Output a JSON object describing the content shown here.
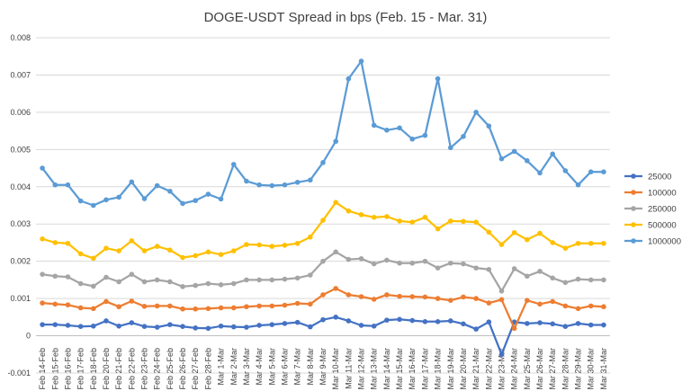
{
  "chart_data": {
    "type": "line",
    "title": "DOGE-USDT Spread in bps (Feb. 15 - Mar. 31)",
    "xlabel": "",
    "ylabel": "",
    "ylim": [
      -0.001,
      0.008
    ],
    "yticks": [
      -0.001,
      0,
      0.001,
      0.002,
      0.003,
      0.004,
      0.005,
      0.006,
      0.007,
      0.008
    ],
    "ytick_labels": [
      "-0.001",
      "0",
      "0.001",
      "0.002",
      "0.003",
      "0.004",
      "0.005",
      "0.006",
      "0.007",
      "0.008"
    ],
    "grid": true,
    "legend_position": "right",
    "categories": [
      "Feb 14-Feb",
      "Feb 15-Feb",
      "Feb 16-Feb",
      "Feb 17-Feb",
      "Feb 18-Feb",
      "Feb 20-Feb",
      "Feb 21-Feb",
      "Feb 22-Feb",
      "Feb 23-Feb",
      "Feb 24-Feb",
      "Feb 25-Feb",
      "Feb 26-Feb",
      "Feb 27-Feb",
      "Feb 28-Feb",
      "Mar 1-Mar",
      "Mar 2-Mar",
      "Mar 3-Mar",
      "Mar 4-Mar",
      "Mar 5-Mar",
      "Mar 6-Mar",
      "Mar 7-Mar",
      "Mar 8-Mar",
      "Mar 9-Mar",
      "Mar 10-Mar",
      "Mar 11-Mar",
      "Mar 12-Mar",
      "Mar 13-Mar",
      "Mar 14-Mar",
      "Mar 15-Mar",
      "Mar 16-Mar",
      "Mar 17-Mar",
      "Mar 18-Mar",
      "Mar 19-Mar",
      "Mar 20-Mar",
      "Mar 21-Mar",
      "Mar 22-Mar",
      "Mar 23-Mar",
      "Mar 24-Mar",
      "Mar 25-Mar",
      "Mar 26-Mar",
      "Mar 27-Mar",
      "Mar 28-Mar",
      "Mar 29-Mar",
      "Mar 30-Mar",
      "Mar 31-Mar"
    ],
    "series": [
      {
        "name": "25000",
        "color": "#4472C4",
        "values": [
          0.0003,
          0.0003,
          0.00028,
          0.00025,
          0.00026,
          0.0004,
          0.00026,
          0.00035,
          0.00025,
          0.00023,
          0.0003,
          0.00025,
          0.00021,
          0.0002,
          0.00026,
          0.00024,
          0.00023,
          0.00028,
          0.0003,
          0.00033,
          0.00036,
          0.00024,
          0.00043,
          0.0005,
          0.0004,
          0.00028,
          0.00026,
          0.00042,
          0.00044,
          0.00041,
          0.00038,
          0.00038,
          0.0004,
          0.00032,
          0.00018,
          0.00037,
          -0.0005,
          0.00037,
          0.00033,
          0.00035,
          0.00032,
          0.00025,
          0.00033,
          0.00029,
          0.00029
        ]
      },
      {
        "name": "100000",
        "color": "#ED7D31",
        "values": [
          0.00088,
          0.00085,
          0.00083,
          0.00075,
          0.00073,
          0.00092,
          0.00078,
          0.00093,
          0.00079,
          0.0008,
          0.0008,
          0.00072,
          0.00072,
          0.00073,
          0.00075,
          0.00075,
          0.00078,
          0.0008,
          0.0008,
          0.00082,
          0.00087,
          0.00085,
          0.0011,
          0.00127,
          0.0011,
          0.00105,
          0.00098,
          0.0011,
          0.00106,
          0.00105,
          0.00104,
          0.001,
          0.00095,
          0.00104,
          0.001,
          0.00088,
          0.00097,
          0.0002,
          0.00095,
          0.00085,
          0.00092,
          0.0008,
          0.00073,
          0.0008,
          0.00078
        ]
      },
      {
        "name": "250000",
        "color": "#A5A5A5",
        "values": [
          0.00165,
          0.0016,
          0.00158,
          0.0014,
          0.00133,
          0.00157,
          0.00145,
          0.00165,
          0.00145,
          0.0015,
          0.00145,
          0.00132,
          0.00135,
          0.0014,
          0.00137,
          0.0014,
          0.0015,
          0.0015,
          0.0015,
          0.00152,
          0.00155,
          0.00163,
          0.002,
          0.00225,
          0.00205,
          0.00207,
          0.00193,
          0.00203,
          0.00195,
          0.00195,
          0.002,
          0.00182,
          0.00195,
          0.00193,
          0.00182,
          0.00178,
          0.0012,
          0.0018,
          0.0016,
          0.00173,
          0.00155,
          0.00143,
          0.00152,
          0.0015,
          0.0015
        ]
      },
      {
        "name": "500000",
        "color": "#FFC000",
        "values": [
          0.0026,
          0.0025,
          0.00248,
          0.0022,
          0.00208,
          0.00235,
          0.00228,
          0.00255,
          0.00228,
          0.0024,
          0.0023,
          0.0021,
          0.00215,
          0.00225,
          0.00218,
          0.00228,
          0.00245,
          0.00244,
          0.0024,
          0.00243,
          0.00248,
          0.00265,
          0.0031,
          0.00358,
          0.00335,
          0.00325,
          0.00318,
          0.0032,
          0.00308,
          0.00305,
          0.00318,
          0.00287,
          0.00308,
          0.00307,
          0.00305,
          0.00278,
          0.00245,
          0.00277,
          0.00258,
          0.00275,
          0.0025,
          0.00235,
          0.00248,
          0.00248,
          0.00248
        ]
      },
      {
        "name": "1000000",
        "color": "#5B9BD5",
        "values": [
          0.0045,
          0.00405,
          0.00405,
          0.00362,
          0.0035,
          0.00365,
          0.00372,
          0.00413,
          0.00368,
          0.00403,
          0.00388,
          0.00355,
          0.00363,
          0.0038,
          0.00367,
          0.0046,
          0.00415,
          0.00405,
          0.00403,
          0.00405,
          0.00412,
          0.00418,
          0.00465,
          0.00522,
          0.0069,
          0.00737,
          0.00565,
          0.00552,
          0.00558,
          0.00528,
          0.00538,
          0.0069,
          0.00505,
          0.00535,
          0.006,
          0.00563,
          0.00475,
          0.00495,
          0.0047,
          0.00437,
          0.00488,
          0.00443,
          0.00405,
          0.0044,
          0.0044
        ]
      }
    ]
  }
}
